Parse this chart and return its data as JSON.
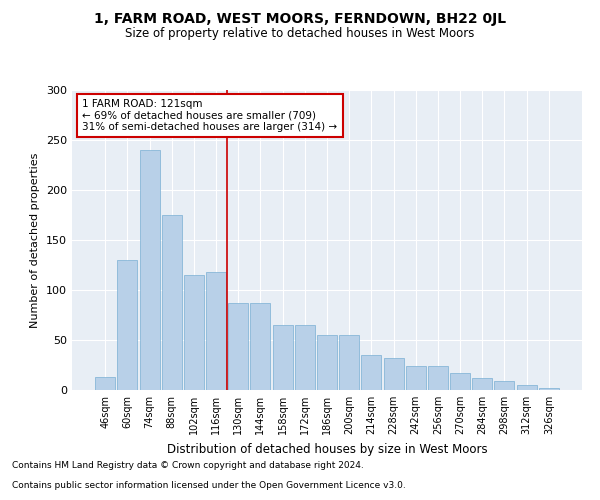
{
  "title1": "1, FARM ROAD, WEST MOORS, FERNDOWN, BH22 0JL",
  "title2": "Size of property relative to detached houses in West Moors",
  "xlabel": "Distribution of detached houses by size in West Moors",
  "ylabel": "Number of detached properties",
  "bar_color": "#b8d0e8",
  "bar_edge_color": "#7aafd4",
  "categories": [
    "46sqm",
    "60sqm",
    "74sqm",
    "88sqm",
    "102sqm",
    "116sqm",
    "130sqm",
    "144sqm",
    "158sqm",
    "172sqm",
    "186sqm",
    "200sqm",
    "214sqm",
    "228sqm",
    "242sqm",
    "256sqm",
    "270sqm",
    "284sqm",
    "298sqm",
    "312sqm",
    "326sqm"
  ],
  "values": [
    13,
    130,
    240,
    175,
    115,
    118,
    87,
    87,
    65,
    65,
    55,
    55,
    35,
    32,
    24,
    24,
    17,
    12,
    9,
    5,
    2
  ],
  "property_bin_index": 5.5,
  "annotation_text": "1 FARM ROAD: 121sqm\n← 69% of detached houses are smaller (709)\n31% of semi-detached houses are larger (314) →",
  "annotation_box_color": "#ffffff",
  "annotation_box_edge": "#cc0000",
  "vline_color": "#cc0000",
  "ylim": [
    0,
    300
  ],
  "yticks": [
    0,
    50,
    100,
    150,
    200,
    250,
    300
  ],
  "background_color": "#e8eef5",
  "footer1": "Contains HM Land Registry data © Crown copyright and database right 2024.",
  "footer2": "Contains public sector information licensed under the Open Government Licence v3.0."
}
